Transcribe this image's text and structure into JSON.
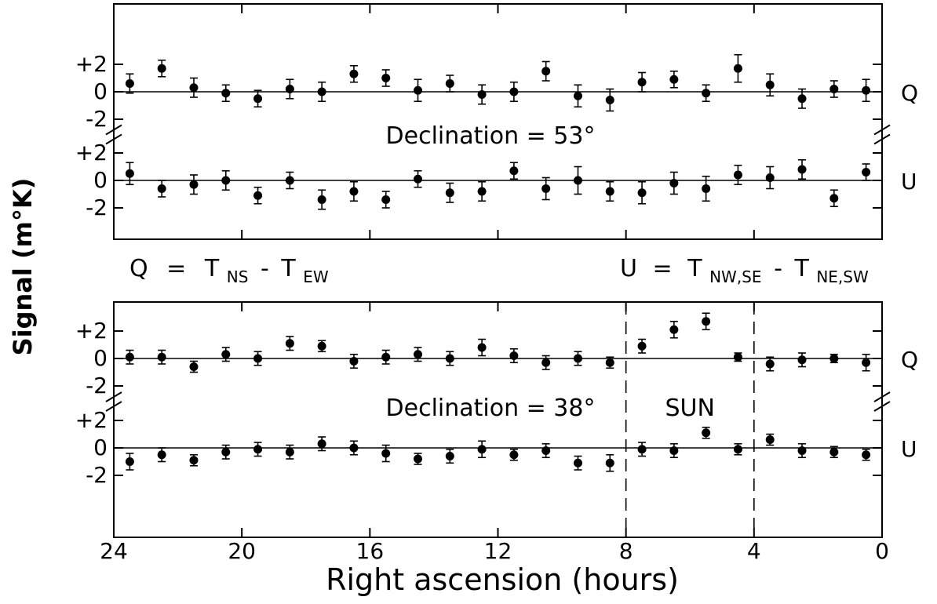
{
  "chart_data": {
    "type": "scatter",
    "xlabel": "Right ascension (hours)",
    "ylabel": "Signal (m°K)",
    "x_ticks": [
      "24",
      "20",
      "16",
      "12",
      "8",
      "4",
      "0"
    ],
    "xlim": [
      24,
      0
    ],
    "ylim": [
      -4,
      4
    ],
    "y_ticks": [
      "+2",
      "0",
      "-2"
    ],
    "formulas": {
      "q": {
        "lhs": "Q",
        "eq": "=",
        "t1": "T",
        "s1": "NS",
        "minus": "-",
        "t2": "T",
        "s2": "EW"
      },
      "u": {
        "lhs": "U",
        "eq": "=",
        "t1": "T",
        "s1": "NW,SE",
        "minus": "-",
        "t2": "T",
        "s2": "NE,SW"
      }
    },
    "panels": [
      {
        "label": "Declination = 53°",
        "rows": [
          {
            "name": "Q",
            "x": [
              23.5,
              22.5,
              21.5,
              20.5,
              19.5,
              18.5,
              17.5,
              16.5,
              15.5,
              14.5,
              13.5,
              12.5,
              11.5,
              10.5,
              9.5,
              8.5,
              7.5,
              6.5,
              5.5,
              4.5,
              3.5,
              2.5,
              1.5,
              0.5
            ],
            "y": [
              0.6,
              1.7,
              0.3,
              -0.1,
              -0.5,
              0.2,
              0.0,
              1.3,
              1.0,
              0.1,
              0.6,
              -0.2,
              0.0,
              1.5,
              -0.3,
              -0.6,
              0.7,
              0.9,
              -0.1,
              1.7,
              0.5,
              -0.5,
              0.2,
              0.1
            ],
            "err": [
              0.7,
              0.6,
              0.7,
              0.6,
              0.6,
              0.7,
              0.7,
              0.6,
              0.6,
              0.8,
              0.6,
              0.7,
              0.7,
              0.7,
              0.8,
              0.8,
              0.7,
              0.6,
              0.6,
              1.0,
              0.8,
              0.7,
              0.6,
              0.8
            ]
          },
          {
            "name": "U",
            "x": [
              23.5,
              22.5,
              21.5,
              20.5,
              19.5,
              18.5,
              17.5,
              16.5,
              15.5,
              14.5,
              13.5,
              12.5,
              11.5,
              10.5,
              9.5,
              8.5,
              7.5,
              6.5,
              5.5,
              4.5,
              3.5,
              2.5,
              1.5,
              0.5
            ],
            "y": [
              0.5,
              -0.6,
              -0.3,
              0.0,
              -1.1,
              0.0,
              -1.4,
              -0.8,
              -1.4,
              0.1,
              -0.9,
              -0.8,
              0.7,
              -0.6,
              0.0,
              -0.8,
              -0.9,
              -0.2,
              -0.6,
              0.4,
              0.2,
              0.8,
              -1.3,
              0.6
            ],
            "err": [
              0.8,
              0.6,
              0.7,
              0.7,
              0.6,
              0.6,
              0.7,
              0.7,
              0.6,
              0.6,
              0.7,
              0.7,
              0.6,
              0.8,
              1.0,
              0.7,
              0.8,
              0.8,
              0.9,
              0.7,
              0.8,
              0.7,
              0.6,
              0.6
            ]
          }
        ]
      },
      {
        "label": "Declination = 38°",
        "annotation": "SUN",
        "sun_range_hours": [
          8,
          4
        ],
        "rows": [
          {
            "name": "Q",
            "x": [
              23.5,
              22.5,
              21.5,
              20.5,
              19.5,
              18.5,
              17.5,
              16.5,
              15.5,
              14.5,
              13.5,
              12.5,
              11.5,
              10.5,
              9.5,
              8.5,
              7.5,
              6.5,
              5.5,
              4.5,
              3.5,
              2.5,
              1.5,
              0.5
            ],
            "y": [
              0.1,
              0.1,
              -0.6,
              0.3,
              0.0,
              1.1,
              0.9,
              -0.2,
              0.1,
              0.3,
              0.0,
              0.8,
              0.2,
              -0.3,
              0.0,
              -0.3,
              0.9,
              2.1,
              2.7,
              0.1,
              -0.4,
              -0.1,
              0.0,
              -0.3
            ],
            "err": [
              0.5,
              0.5,
              0.4,
              0.5,
              0.5,
              0.5,
              0.4,
              0.5,
              0.5,
              0.5,
              0.5,
              0.6,
              0.5,
              0.5,
              0.5,
              0.4,
              0.5,
              0.6,
              0.6,
              0.3,
              0.5,
              0.5,
              0.3,
              0.6
            ]
          },
          {
            "name": "U",
            "x": [
              23.5,
              22.5,
              21.5,
              20.5,
              19.5,
              18.5,
              17.5,
              16.5,
              15.5,
              14.5,
              13.5,
              12.5,
              11.5,
              10.5,
              9.5,
              8.5,
              7.5,
              6.5,
              5.5,
              4.5,
              3.5,
              2.5,
              1.5,
              0.5
            ],
            "y": [
              -1.0,
              -0.5,
              -0.9,
              -0.3,
              -0.1,
              -0.3,
              0.3,
              0.0,
              -0.4,
              -0.8,
              -0.6,
              -0.1,
              -0.5,
              -0.2,
              -1.1,
              -1.1,
              -0.1,
              -0.2,
              1.1,
              -0.1,
              0.6,
              -0.2,
              -0.3,
              -0.5
            ],
            "err": [
              0.6,
              0.5,
              0.4,
              0.5,
              0.5,
              0.5,
              0.5,
              0.5,
              0.6,
              0.4,
              0.5,
              0.6,
              0.4,
              0.5,
              0.5,
              0.6,
              0.5,
              0.5,
              0.4,
              0.4,
              0.4,
              0.5,
              0.4,
              0.4
            ]
          }
        ]
      }
    ]
  }
}
